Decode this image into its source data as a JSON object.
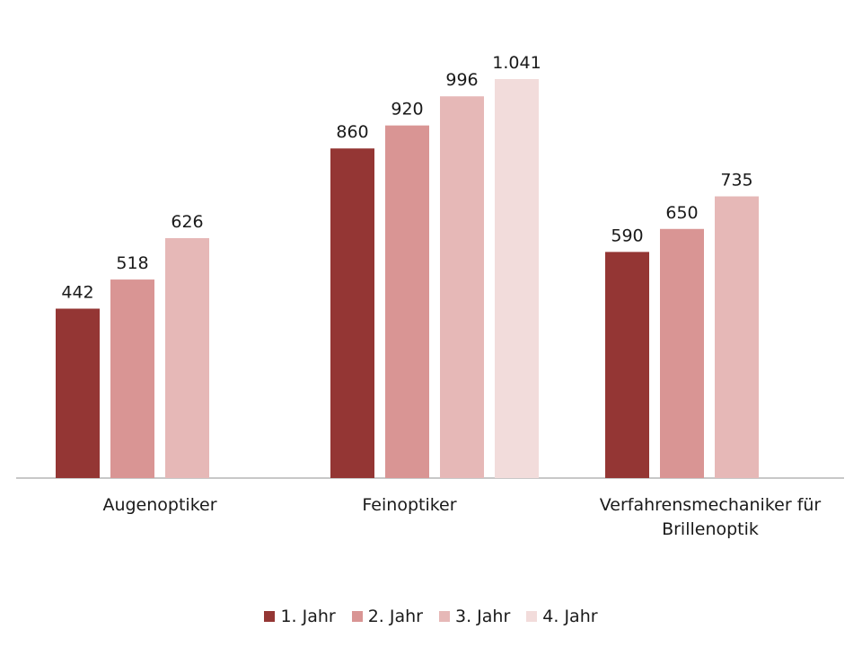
{
  "chart_data": {
    "type": "bar",
    "categories": [
      "Augenoptiker",
      "Feinoptiker",
      "Verfahrensmechaniker für Brillenoptik"
    ],
    "category_label_lines": [
      [
        "Augenoptiker"
      ],
      [
        "Feinoptiker"
      ],
      [
        "Verfahrensmechaniker für",
        "Brillenoptik"
      ]
    ],
    "series": [
      {
        "name": "1. Jahr",
        "values": [
          442,
          860,
          590
        ],
        "labels": [
          "442",
          "860",
          "590"
        ],
        "color": "#943634"
      },
      {
        "name": "2. Jahr",
        "values": [
          518,
          920,
          650
        ],
        "labels": [
          "518",
          "920",
          "650"
        ],
        "color": "#d99594"
      },
      {
        "name": "3. Jahr",
        "values": [
          626,
          996,
          735
        ],
        "labels": [
          "626",
          "996",
          "735"
        ],
        "color": "#e6b8b7"
      },
      {
        "name": "4. Jahr",
        "values": [
          null,
          1041,
          null
        ],
        "labels": [
          null,
          "1.041",
          null
        ],
        "color": "#f2dcdb"
      }
    ],
    "title": "",
    "xlabel": "",
    "ylabel": "",
    "ylim": [
      0,
      1100
    ],
    "grid": false,
    "legend_position": "bottom"
  }
}
